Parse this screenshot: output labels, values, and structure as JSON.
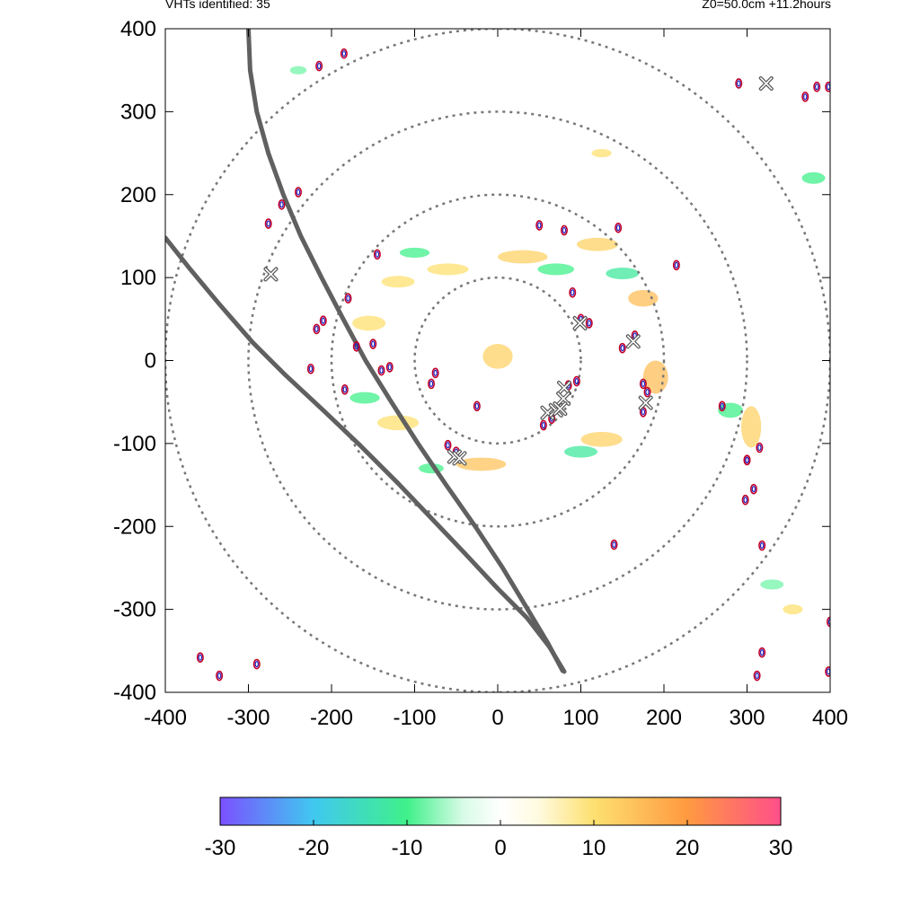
{
  "header": {
    "vht_count_label": "VHTs identified: 35",
    "run_info_label": "Z0=50.0cm  +11.2hours"
  },
  "colorbar": {
    "min": -30,
    "max": 30,
    "tick_labels": [
      "-30",
      "-20",
      "-10",
      "0",
      "10",
      "20",
      "30"
    ],
    "gradient_stops": [
      {
        "value": -30,
        "color": "#7b50ff"
      },
      {
        "value": -20,
        "color": "#40c8f0"
      },
      {
        "value": -10,
        "color": "#40f08a"
      },
      {
        "value": -4,
        "color": "#d8fbe6"
      },
      {
        "value": 0,
        "color": "#ffffff"
      },
      {
        "value": 4,
        "color": "#fffbe0"
      },
      {
        "value": 10,
        "color": "#fde070"
      },
      {
        "value": 20,
        "color": "#ff9a40"
      },
      {
        "value": 30,
        "color": "#ff4f8a"
      }
    ]
  },
  "chart_data": {
    "type": "scatter",
    "xlim": [
      -400,
      400
    ],
    "ylim": [
      -400,
      400
    ],
    "x_tick_labels": [
      "-400",
      "-300",
      "-200",
      "-100",
      "0",
      "100",
      "200",
      "300",
      "400"
    ],
    "y_tick_labels": [
      "400",
      "300",
      "200",
      "100",
      "0",
      "-100",
      "-200",
      "-300",
      "-400"
    ],
    "x_ticks": [
      -400,
      -300,
      -200,
      -100,
      0,
      100,
      200,
      300,
      400
    ],
    "y_ticks": [
      400,
      300,
      200,
      100,
      0,
      -100,
      -200,
      -300,
      -400
    ],
    "range_rings": [
      100,
      200,
      300,
      400
    ],
    "ring_color": "#777777",
    "track_color": "#606060",
    "vortex_marker_color": "#555555",
    "contour_colors": [
      "#c0002a",
      "#2020c0"
    ],
    "tracks": [
      {
        "points": [
          [
            -300,
            400
          ],
          [
            -298,
            350
          ],
          [
            -290,
            300
          ],
          [
            -276,
            250
          ],
          [
            -258,
            200
          ],
          [
            -237,
            150
          ],
          [
            -212,
            100
          ],
          [
            -186,
            50
          ],
          [
            -159,
            0
          ],
          [
            -128,
            -50
          ],
          [
            -96,
            -100
          ],
          [
            -62,
            -150
          ],
          [
            -27,
            -200
          ],
          [
            6,
            -250
          ],
          [
            36,
            -300
          ],
          [
            60,
            -340
          ],
          [
            78,
            -374
          ]
        ]
      },
      {
        "points": [
          [
            -400,
            148
          ],
          [
            -370,
            110
          ],
          [
            -335,
            68
          ],
          [
            -295,
            22
          ],
          [
            -255,
            -18
          ],
          [
            -210,
            -60
          ],
          [
            -165,
            -103
          ],
          [
            -120,
            -148
          ],
          [
            -80,
            -190
          ],
          [
            -40,
            -232
          ],
          [
            0,
            -275
          ],
          [
            35,
            -310
          ],
          [
            62,
            -345
          ],
          [
            80,
            -375
          ]
        ]
      }
    ],
    "vortex_markers": [
      {
        "x": 323,
        "y": 334
      },
      {
        "x": -273,
        "y": 104
      },
      {
        "x": 99,
        "y": 45
      },
      {
        "x": 163,
        "y": 23
      },
      {
        "x": 80,
        "y": -33
      },
      {
        "x": 79,
        "y": -46
      },
      {
        "x": 178,
        "y": -51
      },
      {
        "x": 60,
        "y": -63
      },
      {
        "x": 70,
        "y": -60
      },
      {
        "x": 75,
        "y": -58
      },
      {
        "x": -52,
        "y": -116
      },
      {
        "x": -46,
        "y": -118
      }
    ],
    "contours": [
      {
        "x": 290,
        "y": 334
      },
      {
        "x": 370,
        "y": 318
      },
      {
        "x": 384,
        "y": 330
      },
      {
        "x": 398,
        "y": 330
      },
      {
        "x": -215,
        "y": 355
      },
      {
        "x": -185,
        "y": 370
      },
      {
        "x": -240,
        "y": 203
      },
      {
        "x": -260,
        "y": 188
      },
      {
        "x": -276,
        "y": 165
      },
      {
        "x": -218,
        "y": 38
      },
      {
        "x": -210,
        "y": 48
      },
      {
        "x": -170,
        "y": 17
      },
      {
        "x": -184,
        "y": -35
      },
      {
        "x": -150,
        "y": 20
      },
      {
        "x": -140,
        "y": -12
      },
      {
        "x": -130,
        "y": -8
      },
      {
        "x": -80,
        "y": -28
      },
      {
        "x": -75,
        "y": -15
      },
      {
        "x": -25,
        "y": -55
      },
      {
        "x": -60,
        "y": -102
      },
      {
        "x": -50,
        "y": -110
      },
      {
        "x": 55,
        "y": -78
      },
      {
        "x": 65,
        "y": -70
      },
      {
        "x": 85,
        "y": -30
      },
      {
        "x": 95,
        "y": -25
      },
      {
        "x": 100,
        "y": 50
      },
      {
        "x": 110,
        "y": 45
      },
      {
        "x": 165,
        "y": 30
      },
      {
        "x": 150,
        "y": 15
      },
      {
        "x": 175,
        "y": -28
      },
      {
        "x": 180,
        "y": -38
      },
      {
        "x": 175,
        "y": -62
      },
      {
        "x": 90,
        "y": 82
      },
      {
        "x": 80,
        "y": 157
      },
      {
        "x": 50,
        "y": 163
      },
      {
        "x": 145,
        "y": 160
      },
      {
        "x": 215,
        "y": 115
      },
      {
        "x": -145,
        "y": 128
      },
      {
        "x": 315,
        "y": -105
      },
      {
        "x": 300,
        "y": -120
      },
      {
        "x": 308,
        "y": -155
      },
      {
        "x": 298,
        "y": -168
      },
      {
        "x": 300,
        "y": -120
      },
      {
        "x": 140,
        "y": -222
      },
      {
        "x": 318,
        "y": -223
      },
      {
        "x": 270,
        "y": -55
      },
      {
        "x": 312,
        "y": -380
      },
      {
        "x": 318,
        "y": -352
      },
      {
        "x": 398,
        "y": -375
      },
      {
        "x": 400,
        "y": -315
      },
      {
        "x": -335,
        "y": -380
      },
      {
        "x": -290,
        "y": -366
      },
      {
        "x": -358,
        "y": -358
      },
      {
        "x": -180,
        "y": 75
      },
      {
        "x": -225,
        "y": -10
      }
    ],
    "shading_blobs": [
      {
        "x": 0,
        "y": 5,
        "rx": 18,
        "ry": 15,
        "value": 12
      },
      {
        "x": 30,
        "y": 125,
        "rx": 30,
        "ry": 8,
        "value": 12
      },
      {
        "x": -60,
        "y": 110,
        "rx": 25,
        "ry": 7,
        "value": 10
      },
      {
        "x": 120,
        "y": 140,
        "rx": 25,
        "ry": 8,
        "value": 12
      },
      {
        "x": 175,
        "y": 75,
        "rx": 18,
        "ry": 10,
        "value": 15
      },
      {
        "x": 190,
        "y": -20,
        "rx": 15,
        "ry": 20,
        "value": 15
      },
      {
        "x": 125,
        "y": -95,
        "rx": 25,
        "ry": 9,
        "value": 12
      },
      {
        "x": -20,
        "y": -125,
        "rx": 30,
        "ry": 8,
        "value": 14
      },
      {
        "x": -120,
        "y": -75,
        "rx": 25,
        "ry": 9,
        "value": 10
      },
      {
        "x": -155,
        "y": 45,
        "rx": 20,
        "ry": 9,
        "value": 10
      },
      {
        "x": -120,
        "y": 95,
        "rx": 20,
        "ry": 7,
        "value": 10
      },
      {
        "x": 70,
        "y": 110,
        "rx": 22,
        "ry": 7,
        "value": -10
      },
      {
        "x": 150,
        "y": 105,
        "rx": 20,
        "ry": 7,
        "value": -12
      },
      {
        "x": -100,
        "y": 130,
        "rx": 18,
        "ry": 6,
        "value": -10
      },
      {
        "x": -160,
        "y": -45,
        "rx": 18,
        "ry": 7,
        "value": -10
      },
      {
        "x": 100,
        "y": -110,
        "rx": 20,
        "ry": 7,
        "value": -12
      },
      {
        "x": -80,
        "y": -130,
        "rx": 15,
        "ry": 6,
        "value": -10
      },
      {
        "x": 280,
        "y": -60,
        "rx": 15,
        "ry": 9,
        "value": -10
      },
      {
        "x": 305,
        "y": -80,
        "rx": 12,
        "ry": 25,
        "value": 12
      },
      {
        "x": 380,
        "y": 220,
        "rx": 14,
        "ry": 7,
        "value": -10
      },
      {
        "x": 125,
        "y": 250,
        "rx": 12,
        "ry": 5,
        "value": 10
      },
      {
        "x": -240,
        "y": 350,
        "rx": 10,
        "ry": 5,
        "value": -8
      },
      {
        "x": 355,
        "y": -300,
        "rx": 12,
        "ry": 6,
        "value": 10
      },
      {
        "x": 330,
        "y": -270,
        "rx": 14,
        "ry": 6,
        "value": -8
      }
    ]
  }
}
